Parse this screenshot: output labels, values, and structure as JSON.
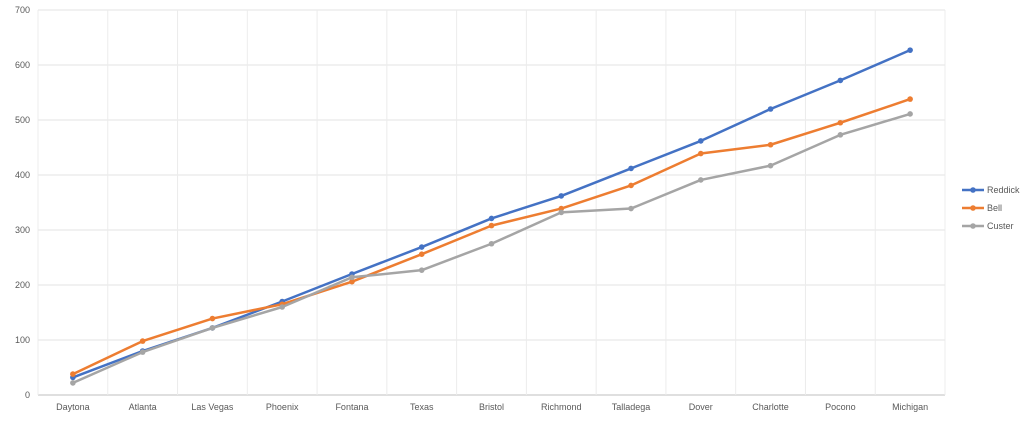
{
  "chart_data": {
    "type": "line",
    "title": "",
    "xlabel": "",
    "ylabel": "",
    "ylim": [
      0,
      700
    ],
    "y_ticks": [
      0,
      100,
      200,
      300,
      400,
      500,
      600,
      700
    ],
    "grid": true,
    "legend_position": "right",
    "categories": [
      "Daytona",
      "Atlanta",
      "Las Vegas",
      "Phoenix",
      "Fontana",
      "Texas",
      "Bristol",
      "Richmond",
      "Talladega",
      "Dover",
      "Charlotte",
      "Pocono",
      "Michigan"
    ],
    "series": [
      {
        "name": "Reddick",
        "color": "#4472c4",
        "values": [
          32,
          80,
          122,
          170,
          220,
          269,
          321,
          362,
          412,
          462,
          520,
          572,
          627
        ]
      },
      {
        "name": "Bell",
        "color": "#ed7d31",
        "values": [
          38,
          98,
          139,
          165,
          206,
          256,
          308,
          339,
          381,
          439,
          455,
          495,
          538
        ]
      },
      {
        "name": "Custer",
        "color": "#a5a5a5",
        "values": [
          22,
          78,
          122,
          160,
          214,
          227,
          275,
          332,
          339,
          391,
          417,
          473,
          511
        ]
      }
    ]
  }
}
